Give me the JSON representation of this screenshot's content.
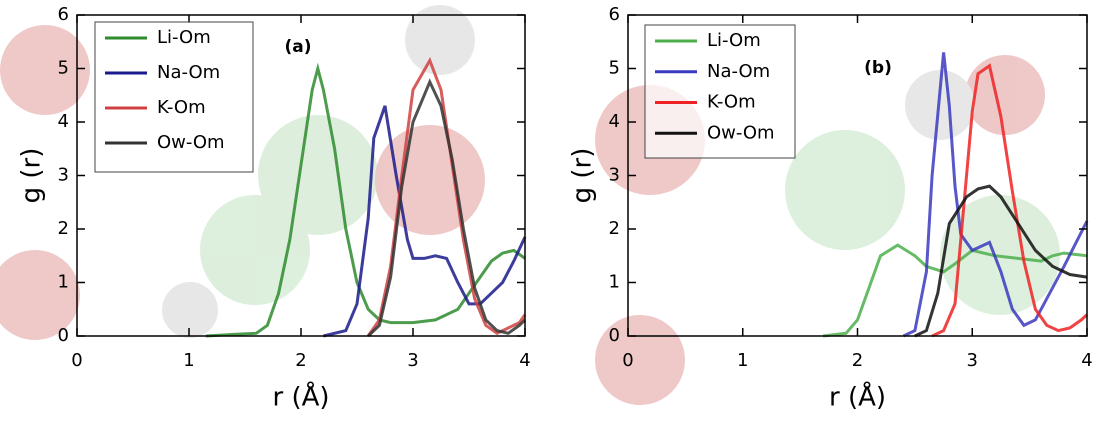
{
  "chart_data": [
    {
      "type": "line",
      "panel_label": "(a)",
      "x_label": "r (Å)",
      "y_label": "g (r)",
      "xlim": [
        0,
        4
      ],
      "ylim": [
        0,
        6
      ],
      "xticks": [
        0,
        1,
        2,
        3,
        4
      ],
      "yticks": [
        0,
        1,
        2,
        3,
        4,
        5,
        6
      ],
      "series": [
        {
          "name": "Li-Om",
          "color": "#2e8b2e",
          "x": [
            1.15,
            1.4,
            1.6,
            1.7,
            1.8,
            1.9,
            2.0,
            2.1,
            2.15,
            2.2,
            2.3,
            2.4,
            2.5,
            2.6,
            2.7,
            2.8,
            3.0,
            3.2,
            3.4,
            3.5,
            3.6,
            3.7,
            3.8,
            3.9,
            4.0
          ],
          "values": [
            0,
            0.03,
            0.05,
            0.2,
            0.8,
            1.8,
            3.2,
            4.6,
            5.0,
            4.6,
            3.5,
            2.0,
            1.0,
            0.5,
            0.3,
            0.25,
            0.25,
            0.3,
            0.5,
            0.8,
            1.1,
            1.4,
            1.55,
            1.6,
            1.45
          ]
        },
        {
          "name": "Na-Om",
          "color": "#1a1a8c",
          "x": [
            2.2,
            2.4,
            2.5,
            2.6,
            2.65,
            2.75,
            2.85,
            2.95,
            3.0,
            3.1,
            3.2,
            3.3,
            3.4,
            3.5,
            3.6,
            3.7,
            3.8,
            3.9,
            4.0
          ],
          "values": [
            0,
            0.1,
            0.6,
            2.2,
            3.7,
            4.3,
            3.0,
            1.8,
            1.45,
            1.45,
            1.5,
            1.45,
            1.0,
            0.6,
            0.6,
            0.8,
            1.0,
            1.4,
            1.85
          ]
        },
        {
          "name": "K-Om",
          "color": "#d04040",
          "x": [
            2.6,
            2.7,
            2.8,
            2.9,
            3.0,
            3.15,
            3.25,
            3.35,
            3.45,
            3.55,
            3.65,
            3.75,
            3.85,
            3.95,
            4.0
          ],
          "values": [
            0,
            0.3,
            1.3,
            3.0,
            4.6,
            5.15,
            4.6,
            3.2,
            1.8,
            0.7,
            0.2,
            0.05,
            0.15,
            0.25,
            0.4
          ]
        },
        {
          "name": "Ow-Om",
          "color": "#333333",
          "x": [
            2.6,
            2.7,
            2.8,
            2.9,
            3.0,
            3.15,
            3.25,
            3.35,
            3.45,
            3.55,
            3.65,
            3.75,
            3.85,
            3.95,
            4.0
          ],
          "values": [
            0,
            0.2,
            1.1,
            2.8,
            4.0,
            4.75,
            4.3,
            3.3,
            2.0,
            0.9,
            0.3,
            0.1,
            0.05,
            0.2,
            0.3
          ]
        }
      ]
    },
    {
      "type": "line",
      "panel_label": "(b)",
      "x_label": "r (Å)",
      "y_label": "g (r)",
      "xlim": [
        0,
        4
      ],
      "ylim": [
        0,
        6
      ],
      "xticks": [
        0,
        1,
        2,
        3,
        4
      ],
      "yticks": [
        0,
        1,
        2,
        3,
        4,
        5,
        6
      ],
      "series": [
        {
          "name": "Li-Om",
          "color": "#4caf4c",
          "x": [
            1.7,
            1.9,
            2.0,
            2.1,
            2.2,
            2.35,
            2.5,
            2.6,
            2.75,
            2.85,
            3.0,
            3.2,
            3.4,
            3.6,
            3.7,
            3.8,
            4.0
          ],
          "values": [
            0,
            0.05,
            0.3,
            0.9,
            1.5,
            1.7,
            1.5,
            1.3,
            1.2,
            1.35,
            1.6,
            1.5,
            1.45,
            1.4,
            1.5,
            1.55,
            1.5
          ]
        },
        {
          "name": "Na-Om",
          "color": "#3a3ac0",
          "x": [
            2.4,
            2.5,
            2.6,
            2.65,
            2.75,
            2.8,
            2.85,
            2.9,
            3.0,
            3.1,
            3.15,
            3.25,
            3.35,
            3.45,
            3.55,
            3.65,
            3.8,
            4.0
          ],
          "values": [
            0,
            0.1,
            1.2,
            3.0,
            5.3,
            4.3,
            2.8,
            1.9,
            1.6,
            1.7,
            1.75,
            1.2,
            0.5,
            0.2,
            0.3,
            0.7,
            1.3,
            2.15
          ]
        },
        {
          "name": "K-Om",
          "color": "#ee2222",
          "x": [
            2.65,
            2.75,
            2.85,
            2.9,
            3.0,
            3.05,
            3.15,
            3.25,
            3.35,
            3.45,
            3.55,
            3.65,
            3.75,
            3.85,
            3.95,
            4.0
          ],
          "values": [
            0,
            0.1,
            0.6,
            1.8,
            4.2,
            4.9,
            5.05,
            4.1,
            2.7,
            1.4,
            0.5,
            0.2,
            0.1,
            0.15,
            0.3,
            0.4
          ]
        },
        {
          "name": "Ow-Om",
          "color": "#111111",
          "x": [
            2.5,
            2.6,
            2.7,
            2.8,
            2.95,
            3.05,
            3.15,
            3.25,
            3.4,
            3.55,
            3.7,
            3.85,
            4.0
          ],
          "values": [
            0,
            0.1,
            0.8,
            2.1,
            2.6,
            2.75,
            2.8,
            2.6,
            2.1,
            1.6,
            1.3,
            1.15,
            1.1
          ]
        }
      ]
    }
  ]
}
